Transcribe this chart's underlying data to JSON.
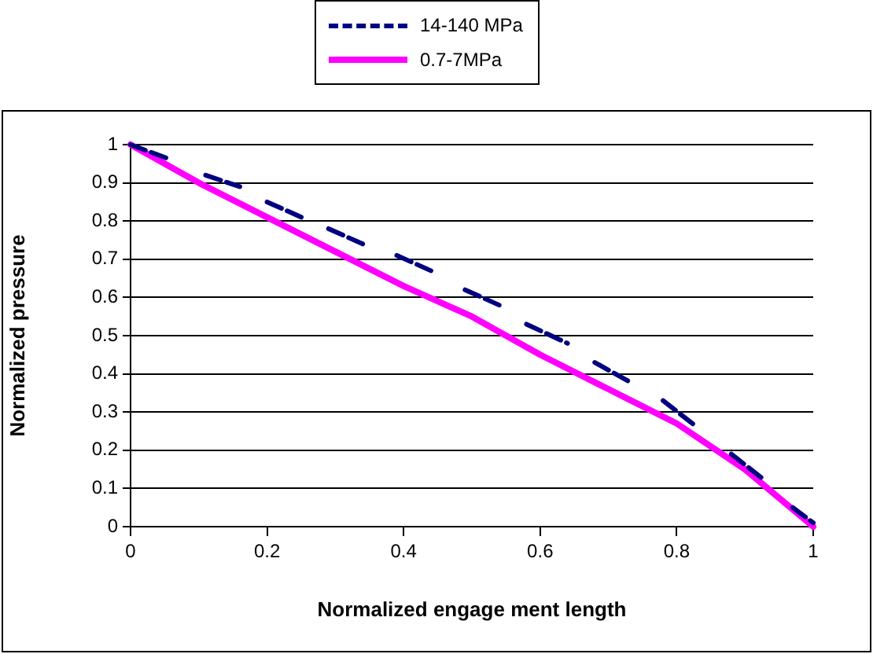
{
  "chart_data": {
    "type": "line",
    "xlabel": "Normalized engage ment length",
    "ylabel": "Normalized pressure",
    "xlim": [
      0,
      1
    ],
    "xticks": [
      0,
      0.2,
      0.4,
      0.6,
      0.8,
      1
    ],
    "ylim": [
      0,
      1
    ],
    "yticks": [
      0,
      0.1,
      0.2,
      0.3,
      0.4,
      0.5,
      0.6,
      0.7,
      0.8,
      0.9,
      1
    ],
    "grid": "y",
    "legend": "top",
    "marker": "none",
    "series": [
      {
        "name": "14-140 MPa",
        "color": "#000080",
        "line_style": "dashed",
        "x": [
          0,
          0.06,
          0.08,
          0.11,
          0.16,
          0.18,
          0.2,
          0.25,
          0.27,
          0.29,
          0.34,
          0.36,
          0.39,
          0.44,
          0.46,
          0.49,
          0.54,
          0.56,
          0.58,
          0.64,
          0.66,
          0.68,
          0.73,
          0.75,
          0.78,
          0.83,
          0.85,
          0.88,
          0.93,
          0.95,
          0.97,
          1
        ],
        "values": [
          1,
          0.96,
          null,
          0.92,
          0.89,
          null,
          0.85,
          0.81,
          null,
          0.78,
          0.74,
          null,
          0.71,
          0.67,
          null,
          0.62,
          0.58,
          null,
          0.53,
          0.48,
          null,
          0.43,
          0.38,
          null,
          0.33,
          0.26,
          null,
          0.19,
          0.12,
          null,
          0.05,
          0.01
        ]
      },
      {
        "name": "0.7-7MPa",
        "color": "#ff00ff",
        "line_style": "solid",
        "x": [
          0,
          0.1,
          0.2,
          0.3,
          0.4,
          0.5,
          0.6,
          0.7,
          0.8,
          0.9,
          1
        ],
        "values": [
          1,
          0.9,
          0.81,
          0.72,
          0.63,
          0.55,
          0.45,
          0.36,
          0.27,
          0.15,
          0
        ]
      }
    ]
  }
}
